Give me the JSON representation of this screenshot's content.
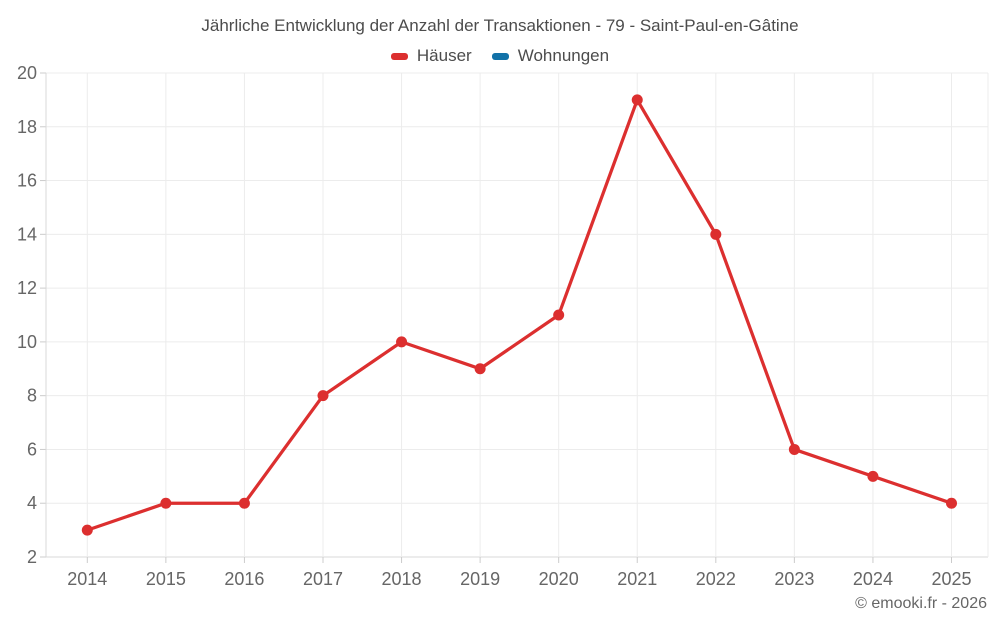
{
  "title": "Jährliche Entwicklung der Anzahl der Transaktionen - 79 - Saint-Paul-en-Gâtine",
  "footer": {
    "copyright": "© emooki.fr - 2026"
  },
  "colors": {
    "grid": "#ececec",
    "axis": "#d9d9d9",
    "tick": "#cccccc",
    "axis_label": "#666666",
    "title_text": "#4c4c4c"
  },
  "chart_data": {
    "type": "line",
    "title": "Jährliche Entwicklung der Anzahl der Transaktionen - 79 - Saint-Paul-en-Gâtine",
    "categories": [
      "2014",
      "2015",
      "2016",
      "2017",
      "2018",
      "2019",
      "2020",
      "2021",
      "2022",
      "2023",
      "2024",
      "2025"
    ],
    "series": [
      {
        "name": "Häuser",
        "color": "#dc2f2f",
        "values": [
          3,
          4,
          4,
          8,
          10,
          9,
          11,
          19,
          14,
          6,
          5,
          4
        ]
      },
      {
        "name": "Wohnungen",
        "color": "#1272a8",
        "values": []
      }
    ],
    "xlabel": "",
    "ylabel": "",
    "ylim": [
      2,
      20
    ],
    "ytick_step": 2,
    "grid": true,
    "legend_position": "top"
  }
}
